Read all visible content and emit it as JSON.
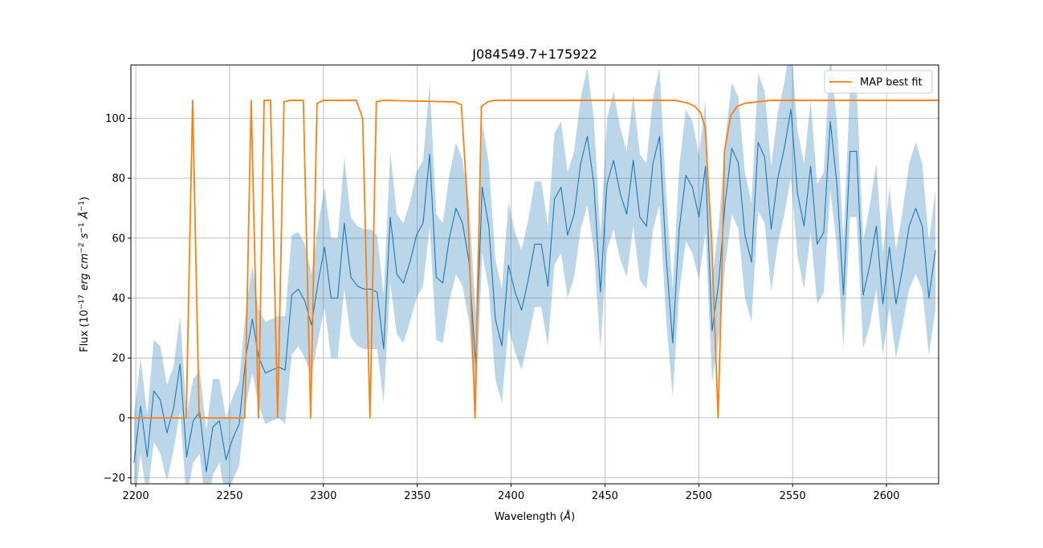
{
  "chart_data": {
    "type": "line",
    "title": "J084549.7+175922",
    "x_label_parts": [
      {
        "text": "Wavelength (",
        "style": "normal"
      },
      {
        "text": "Å",
        "style": "italic"
      },
      {
        "text": ")",
        "style": "normal"
      }
    ],
    "y_label_parts": [
      {
        "text": "Flux (10",
        "style": "normal"
      },
      {
        "text": "−17",
        "style": "sup"
      },
      {
        "text": "erg",
        "style": "italic"
      },
      {
        "text": "cm",
        "style": "italic"
      },
      {
        "text": "−2",
        "style": "sup"
      },
      {
        "text": "s",
        "style": "italic"
      },
      {
        "text": "−1",
        "style": "sup"
      },
      {
        "text": "Å",
        "style": "italic"
      },
      {
        "text": "−1",
        "style": "sup"
      },
      {
        "text": ")",
        "style": "normal"
      }
    ],
    "xlim": [
      2197.4,
      2627.8
    ],
    "ylim": [
      -22,
      117.8
    ],
    "xticks": [
      2200,
      2250,
      2300,
      2350,
      2400,
      2450,
      2500,
      2550,
      2600
    ],
    "yticks": [
      {
        "value": -20,
        "label": "−20"
      },
      0,
      20,
      40,
      60,
      80,
      100
    ],
    "grid": true,
    "legend": "upper right",
    "series": [
      {
        "color": "#1f77b4",
        "band_color": "#1f77b4",
        "x": [
          2199.1,
          2202.6,
          2206.1,
          2209.6,
          2213.1,
          2216.6,
          2220.1,
          2223.6,
          2227.1,
          2230.6,
          2234.1,
          2237.6,
          2241.1,
          2244.6,
          2248.1,
          2251.6,
          2255.1,
          2258.6,
          2262.1,
          2265.6,
          2269.1,
          2272.6,
          2276.1,
          2279.6,
          2283.1,
          2286.6,
          2290.1,
          2293.6,
          2297.1,
          2300.6,
          2304.1,
          2307.6,
          2311.1,
          2314.6,
          2318.1,
          2321.6,
          2325.1,
          2328.6,
          2332.1,
          2335.6,
          2339.1,
          2342.6,
          2346.1,
          2349.6,
          2353.1,
          2356.6,
          2360.1,
          2363.6,
          2367.1,
          2370.6,
          2374.1,
          2377.6,
          2381.1,
          2384.6,
          2388.1,
          2391.6,
          2395.1,
          2398.6,
          2402.1,
          2405.6,
          2409.1,
          2412.6,
          2416.1,
          2419.6,
          2423.1,
          2426.6,
          2430.1,
          2433.6,
          2437.1,
          2440.6,
          2444.1,
          2447.6,
          2451.1,
          2454.6,
          2458.1,
          2461.6,
          2465.1,
          2468.6,
          2472.1,
          2475.6,
          2479.1,
          2482.6,
          2486.1,
          2489.6,
          2493.1,
          2496.6,
          2500.1,
          2503.6,
          2507.1,
          2510.6,
          2514.1,
          2517.6,
          2521.1,
          2524.6,
          2528.1,
          2531.6,
          2535.1,
          2538.6,
          2542.1,
          2545.6,
          2549.1,
          2552.6,
          2556.1,
          2559.6,
          2563.1,
          2566.6,
          2570.1,
          2573.6,
          2577.1,
          2580.6,
          2584.1,
          2587.6,
          2591.1,
          2594.6,
          2598.1,
          2601.6,
          2605.1,
          2608.6,
          2612.1,
          2615.6,
          2619.1,
          2622.6,
          2626.1
        ],
        "values": [
          -15,
          4,
          -13,
          9,
          6,
          -5,
          3,
          18,
          -13,
          -1,
          2,
          -18,
          -3,
          -1,
          -14,
          -7,
          -2,
          20,
          33,
          20,
          15,
          16,
          17,
          16,
          41,
          43,
          39,
          31,
          45,
          57,
          40,
          40,
          65,
          47,
          44,
          43,
          43,
          42,
          23,
          67,
          48,
          45,
          52,
          61,
          65,
          88,
          47,
          45,
          60,
          70,
          65,
          52,
          18,
          77,
          64,
          33,
          24,
          51,
          42,
          36,
          46,
          58,
          58,
          44,
          73,
          77,
          61,
          68,
          85,
          94,
          78,
          42,
          78,
          86,
          75,
          68,
          86,
          67,
          64,
          85,
          94,
          54,
          25,
          63,
          81,
          77,
          67,
          84,
          29,
          45,
          72,
          90,
          85,
          61,
          52,
          92,
          87,
          63,
          80,
          90,
          103,
          75,
          64,
          84,
          58,
          62,
          99,
          78,
          41,
          89,
          89,
          41,
          51,
          64,
          38,
          57,
          38,
          50,
          64,
          70,
          64,
          40,
          56
        ],
        "error": [
          16,
          16,
          14,
          17,
          18,
          16,
          14,
          16,
          14,
          14,
          14,
          14,
          16,
          14,
          14,
          14,
          14,
          16,
          18,
          16,
          17,
          17,
          17,
          18,
          20,
          19,
          19,
          17,
          19,
          20,
          20,
          20,
          22,
          20,
          20,
          20,
          20,
          19,
          18,
          22,
          20,
          20,
          20,
          21,
          21,
          24,
          21,
          20,
          21,
          22,
          21,
          20,
          17,
          22,
          21,
          20,
          19,
          21,
          20,
          20,
          20,
          21,
          21,
          20,
          22,
          22,
          21,
          21,
          22,
          23,
          22,
          19,
          22,
          23,
          22,
          21,
          22,
          21,
          21,
          22,
          23,
          21,
          18,
          21,
          22,
          22,
          21,
          22,
          17,
          19,
          21,
          22,
          22,
          21,
          20,
          23,
          22,
          21,
          22,
          22,
          23,
          21,
          21,
          22,
          20,
          20,
          23,
          21,
          18,
          22,
          22,
          18,
          20,
          21,
          17,
          20,
          18,
          19,
          21,
          22,
          21,
          19,
          20
        ]
      },
      {
        "name": "MAP best fit",
        "color": "#ff7f0e",
        "x": [
          2197.4,
          2226.9,
          2230.3,
          2233.8,
          2258.1,
          2261.5,
          2265.4,
          2268.4,
          2271.8,
          2275.6,
          2279.0,
          2282.4,
          2285.9,
          2289.3,
          2293.2,
          2296.6,
          2300.0,
          2317.5,
          2320.9,
          2324.8,
          2328.2,
          2331.6,
          2369.9,
          2373.5,
          2376.9,
          2380.8,
          2384.2,
          2387.6,
          2391.0,
          2487.6,
          2491.1,
          2494.5,
          2497.9,
          2500.9,
          2503.4,
          2506.8,
          2510.3,
          2512.0,
          2513.7,
          2517.1,
          2520.5,
          2524.4,
          2531.2,
          2538.0,
          2627.8
        ],
        "values": [
          0,
          0,
          106,
          0,
          0,
          106,
          0,
          106,
          106,
          0,
          105.5,
          106,
          106,
          106,
          0,
          105,
          106,
          106,
          100,
          0,
          105.5,
          106,
          105.5,
          104.5,
          70,
          0,
          104,
          105.5,
          106,
          106,
          105.5,
          105,
          104,
          102,
          97,
          60,
          0,
          40,
          89,
          101,
          104,
          105,
          105.5,
          106,
          106
        ]
      }
    ]
  }
}
